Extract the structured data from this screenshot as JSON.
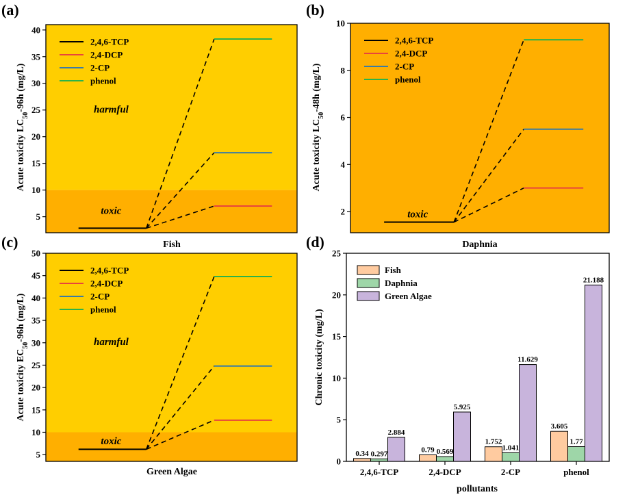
{
  "colors": {
    "harmful_zone": "#FFCE00",
    "toxic_zone": "#FFAF00",
    "line_246tcp": "#000000",
    "line_24dcp": "#E8453C",
    "line_2cp": "#3A7CA5",
    "line_phenol": "#2BB34A",
    "bar_fish": "#FFCBA0",
    "bar_daphnia": "#9ED6A8",
    "bar_algae": "#C8B4DC"
  },
  "chart_data": [
    {
      "id": "a",
      "panel_label": "(a)",
      "type": "line",
      "xlabel": "Fish",
      "ylabel_prefix": "Acute toxicity LC",
      "ylabel_sub": "50",
      "ylabel_suffix": "-96h (mg/L)",
      "ylim": [
        2,
        41
      ],
      "yticks": [
        5,
        10,
        15,
        20,
        25,
        30,
        35,
        40
      ],
      "ytick_labels": [
        "5",
        "10",
        "15",
        "20",
        "25",
        "30",
        "35",
        "40"
      ],
      "toxic_threshold": 10,
      "zones": [
        {
          "label": "harmful",
          "y": 24.5
        },
        {
          "label": "toxic",
          "y": 5.5
        }
      ],
      "legend_position": "top-left",
      "base_value": 2.85,
      "series": [
        {
          "name": "2,4,6-TCP",
          "value": 2.85,
          "color_key": "line_246tcp"
        },
        {
          "name": "2,4-DCP",
          "value": 7.0,
          "color_key": "line_24dcp"
        },
        {
          "name": "2-CP",
          "value": 17.0,
          "color_key": "line_2cp"
        },
        {
          "name": "phenol",
          "value": 38.3,
          "color_key": "line_phenol"
        }
      ]
    },
    {
      "id": "b",
      "panel_label": "(b)",
      "type": "line",
      "xlabel": "Daphnia",
      "ylabel_prefix": "Acute toxicity LC",
      "ylabel_sub": "50",
      "ylabel_suffix": "-48h (mg/L)",
      "ylim": [
        1.1,
        10
      ],
      "yticks": [
        2,
        4,
        6,
        8,
        10
      ],
      "ytick_labels": [
        "2",
        "4",
        "6",
        "8",
        "10"
      ],
      "toxic_threshold": null,
      "zones": [
        {
          "label": "toxic",
          "y": 1.75
        }
      ],
      "legend_position": "top-left",
      "base_value": 1.55,
      "series": [
        {
          "name": "2,4,6-TCP",
          "value": 1.55,
          "color_key": "line_246tcp"
        },
        {
          "name": "2,4-DCP",
          "value": 3.0,
          "color_key": "line_24dcp"
        },
        {
          "name": "2-CP",
          "value": 5.5,
          "color_key": "line_2cp"
        },
        {
          "name": "phenol",
          "value": 9.3,
          "color_key": "line_phenol"
        }
      ]
    },
    {
      "id": "c",
      "panel_label": "(c)",
      "type": "line",
      "xlabel": "Green Algae",
      "ylabel_prefix": "Acute toxicity EC",
      "ylabel_sub": "50",
      "ylabel_suffix": "-96h (mg/L)",
      "ylim": [
        3.5,
        50
      ],
      "yticks": [
        5,
        10,
        15,
        20,
        25,
        30,
        35,
        40,
        45,
        50
      ],
      "ytick_labels": [
        "5",
        "10",
        "15",
        "20",
        "25",
        "30",
        "35",
        "40",
        "45",
        "50"
      ],
      "toxic_threshold": 10,
      "zones": [
        {
          "label": "harmful",
          "y": 29.5
        },
        {
          "label": "toxic",
          "y": 7.3
        }
      ],
      "legend_position": "top-left",
      "base_value": 6.2,
      "series": [
        {
          "name": "2,4,6-TCP",
          "value": 6.2,
          "color_key": "line_246tcp"
        },
        {
          "name": "2,4-DCP",
          "value": 12.7,
          "color_key": "line_24dcp"
        },
        {
          "name": "2-CP",
          "value": 24.8,
          "color_key": "line_2cp"
        },
        {
          "name": "phenol",
          "value": 44.8,
          "color_key": "line_phenol"
        }
      ]
    },
    {
      "id": "d",
      "panel_label": "(d)",
      "type": "bar",
      "xlabel": "pollutants",
      "ylabel": "Chronic toxicity (mg/L)",
      "ylim": [
        0,
        25
      ],
      "yticks": [
        0,
        5,
        10,
        15,
        20,
        25
      ],
      "ytick_labels": [
        "0",
        "5",
        "10",
        "15",
        "20",
        "25"
      ],
      "legend_position": "top-left",
      "categories": [
        "2,4,6-TCP",
        "2,4-DCP",
        "2-CP",
        "phenol"
      ],
      "series": [
        {
          "name": "Fish",
          "values": [
            0.34,
            0.79,
            1.752,
            3.605
          ],
          "labels": [
            "0.34",
            "0.79",
            "1.752",
            "3.605"
          ],
          "color_key": "bar_fish"
        },
        {
          "name": "Daphnia",
          "values": [
            0.297,
            0.569,
            1.041,
            1.77
          ],
          "labels": [
            "0.297",
            "0.569",
            "1.041",
            "1.77"
          ],
          "color_key": "bar_daphnia"
        },
        {
          "name": "Green Algae",
          "values": [
            2.884,
            5.925,
            11.629,
            21.188
          ],
          "labels": [
            "2.884",
            "5.925",
            "11.629",
            "21.188"
          ],
          "color_key": "bar_algae"
        }
      ]
    }
  ]
}
